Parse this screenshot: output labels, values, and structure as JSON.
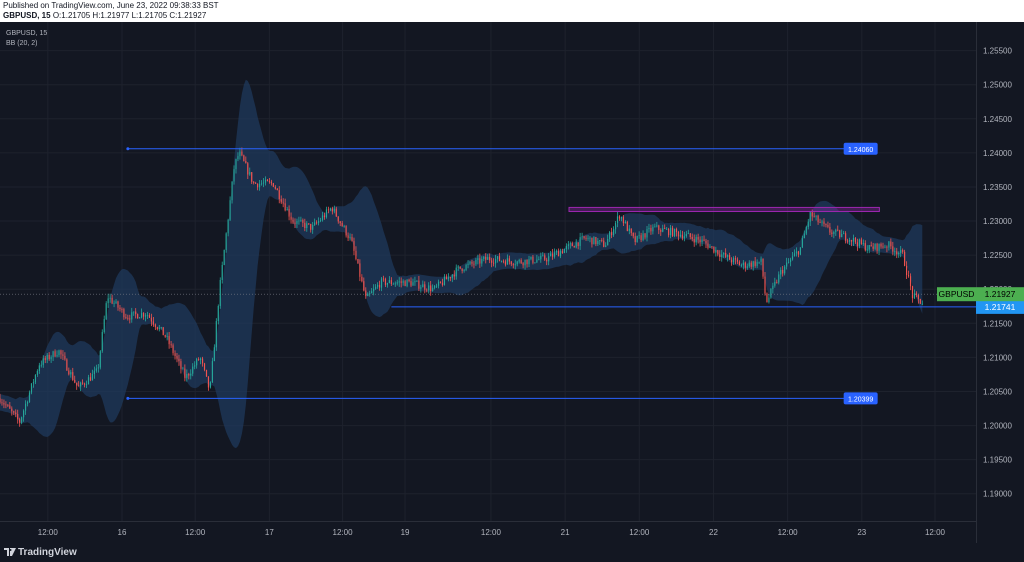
{
  "header": {
    "published": "Published on TradingView.com, June 23, 2022 09:38:33 BST",
    "symbol_line": {
      "symbol": "GBPUSD, 15",
      "o_label": "O:",
      "o": "1.21705",
      "h_label": "H:",
      "h": "1.21977",
      "l_label": "L:",
      "l": "1.21705",
      "c_label": "C:",
      "c": "1.21927"
    }
  },
  "legend": {
    "symbol": "GBPUSD, 15",
    "indicator": "BB (20, 2)"
  },
  "footer": {
    "brand": "TradingView"
  },
  "colors": {
    "background": "#131722",
    "grid": "#1e222d",
    "up": "#26a69a",
    "down": "#ef5350",
    "band_fill": "#1f3a5c",
    "hline": "#2962ff",
    "zone": "#9c27b0",
    "price_label": "#4caf50",
    "level_label": "#2196f3"
  },
  "chart_data": {
    "type": "candlestick",
    "symbol": "GBPUSD",
    "interval": "15",
    "indicator": "BB (20, 2)",
    "x_ticks": [
      "12:00",
      "16",
      "12:00",
      "17",
      "12:00",
      "19",
      "12:00",
      "21",
      "12:00",
      "22",
      "12:00",
      "23",
      "12:00"
    ],
    "y_ticks": [
      "1.25500",
      "1.25000",
      "1.24500",
      "1.24000",
      "1.23500",
      "1.23000",
      "1.22500",
      "1.22000",
      "1.21500",
      "1.21000",
      "1.20500",
      "1.20000",
      "1.19500",
      "1.19000"
    ],
    "y_range": [
      1.186,
      1.2592
    ],
    "current_price": {
      "label": "GBPUSD",
      "value": "1.21927"
    },
    "levels": [
      {
        "value": "1.24060"
      },
      {
        "value": "1.21741"
      },
      {
        "value": "1.20399"
      }
    ],
    "resistance_zone": {
      "low": 1.2314,
      "high": 1.232
    },
    "price_path": [
      [
        0,
        1.204
      ],
      [
        0.02,
        1.2005
      ],
      [
        0.04,
        1.209
      ],
      [
        0.06,
        1.211
      ],
      [
        0.08,
        1.2055
      ],
      [
        0.1,
        1.208
      ],
      [
        0.11,
        1.219
      ],
      [
        0.13,
        1.216
      ],
      [
        0.15,
        1.2165
      ],
      [
        0.17,
        1.213
      ],
      [
        0.19,
        1.207
      ],
      [
        0.205,
        1.21
      ],
      [
        0.215,
        1.205
      ],
      [
        0.225,
        1.22
      ],
      [
        0.24,
        1.238
      ],
      [
        0.245,
        1.24
      ],
      [
        0.26,
        1.2355
      ],
      [
        0.28,
        1.2355
      ],
      [
        0.3,
        1.23
      ],
      [
        0.32,
        1.229
      ],
      [
        0.34,
        1.232
      ],
      [
        0.36,
        1.227
      ],
      [
        0.375,
        1.2185
      ],
      [
        0.39,
        1.221
      ],
      [
        0.42,
        1.221
      ],
      [
        0.445,
        1.22
      ],
      [
        0.47,
        1.223
      ],
      [
        0.5,
        1.2245
      ],
      [
        0.53,
        1.224
      ],
      [
        0.56,
        1.2245
      ],
      [
        0.58,
        1.226
      ],
      [
        0.6,
        1.2275
      ],
      [
        0.62,
        1.2265
      ],
      [
        0.635,
        1.231
      ],
      [
        0.65,
        1.227
      ],
      [
        0.67,
        1.229
      ],
      [
        0.7,
        1.228
      ],
      [
        0.72,
        1.227
      ],
      [
        0.74,
        1.225
      ],
      [
        0.76,
        1.2235
      ],
      [
        0.78,
        1.224
      ],
      [
        0.785,
        1.218
      ],
      [
        0.8,
        1.2225
      ],
      [
        0.82,
        1.226
      ],
      [
        0.83,
        1.231
      ],
      [
        0.85,
        1.2285
      ],
      [
        0.87,
        1.2275
      ],
      [
        0.89,
        1.226
      ],
      [
        0.91,
        1.2265
      ],
      [
        0.925,
        1.225
      ],
      [
        0.935,
        1.219
      ],
      [
        0.945,
        1.218
      ]
    ]
  }
}
